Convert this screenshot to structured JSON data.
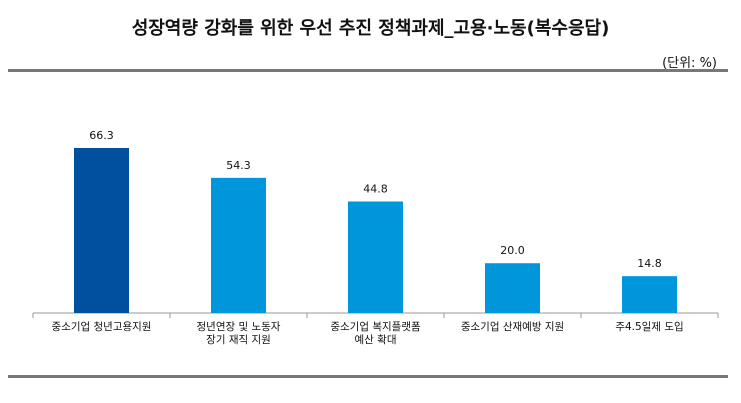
{
  "chart_data": {
    "type": "bar",
    "title": "성장역량 강화를 위한 우선 추진 정책과제_고용·노동(복수응답)",
    "unit": "(단위: %)",
    "categories": [
      [
        "중소기업 청년고용지원"
      ],
      [
        "정년연장 및 노동자",
        "장기 재직 지원"
      ],
      [
        "중소기업 복지플랫폼",
        "예산 확대"
      ],
      [
        "중소기업 산재예방 지원"
      ],
      [
        "주4.5일제 도입"
      ]
    ],
    "values": [
      66.3,
      54.3,
      44.8,
      20.0,
      14.8
    ],
    "value_labels": [
      "66.3",
      "54.3",
      "44.8",
      "20.0",
      "14.8"
    ],
    "colors": [
      "#0050a0",
      "#0096dc",
      "#0096dc",
      "#0096dc",
      "#0096dc"
    ],
    "ylim": [
      0,
      70
    ],
    "grid": false
  }
}
